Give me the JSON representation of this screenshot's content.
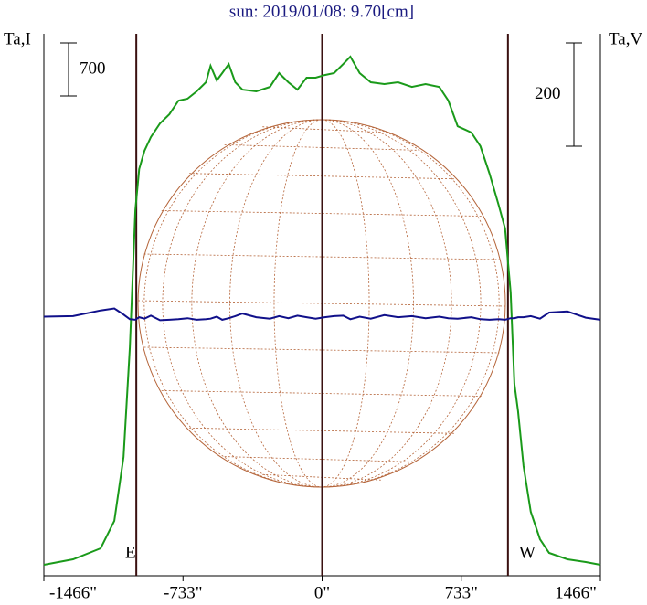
{
  "chart_data": {
    "type": "line",
    "title": "sun: 2019/01/08: 9.70[cm]",
    "y_label": "Ta,I",
    "y2_label": "Ta,V",
    "y_scale_bar": 700,
    "y2_scale_bar": 200,
    "annotations": [
      "E",
      "W"
    ],
    "vlines": [
      -979,
      0,
      979
    ],
    "x": [
      -1466,
      -1312,
      -1167,
      -1095,
      -1046,
      -1013,
      -984,
      -964,
      -936,
      -902,
      -854,
      -805,
      -757,
      -709,
      -661,
      -612,
      -588,
      -555,
      -526,
      -492,
      -458,
      -420,
      -347,
      -275,
      -227,
      -178,
      -130,
      -82,
      -34,
      14,
      63,
      111,
      149,
      198,
      256,
      328,
      400,
      473,
      545,
      617,
      665,
      714,
      786,
      834,
      882,
      931,
      964,
      993,
      1013,
      1032,
      1061,
      1099,
      1148,
      1196,
      1292,
      1389,
      1466
    ],
    "series": [
      {
        "name": "Ta,I",
        "color": "#1a9a1a",
        "values": [
          145,
          217,
          362,
          724,
          1569,
          3018,
          4828,
          5371,
          5613,
          5794,
          5975,
          6095,
          6276,
          6301,
          6397,
          6518,
          6735,
          6542,
          6639,
          6759,
          6518,
          6421,
          6397,
          6457,
          6639,
          6518,
          6421,
          6578,
          6578,
          6614,
          6639,
          6759,
          6856,
          6639,
          6518,
          6494,
          6518,
          6457,
          6494,
          6457,
          6276,
          5938,
          5854,
          5673,
          5311,
          4888,
          4587,
          3742,
          2535,
          2173,
          1448,
          845,
          483,
          302,
          217,
          181,
          145
        ]
      },
      {
        "name": "Ta,V",
        "color": "#10108a",
        "axis": "y2",
        "values": [
          2,
          3,
          14,
          18,
          6,
          -3,
          -4,
          1,
          -2,
          4,
          -5,
          -4,
          -3,
          -1,
          -4,
          -3,
          -2,
          2,
          -4,
          -1,
          3,
          8,
          1,
          -2,
          3,
          -1,
          4,
          1,
          -2,
          1,
          3,
          4,
          -3,
          2,
          -2,
          5,
          1,
          3,
          -1,
          2,
          -1,
          -2,
          1,
          -3,
          -4,
          -3,
          -4,
          -1,
          -1,
          1,
          1,
          3,
          -2,
          10,
          12,
          0,
          -4
        ]
      }
    ],
    "xlim": [
      -1466,
      1466
    ],
    "xticks": [
      {
        "value": -1466,
        "label": "-1466\""
      },
      {
        "value": -733,
        "label": "-733\""
      },
      {
        "value": 0,
        "label": "0\""
      },
      {
        "value": 733,
        "label": "733\""
      },
      {
        "value": 1466,
        "label": "1466\""
      }
    ],
    "ylim": [
      0,
      7158
    ],
    "y2lim": [
      -500,
      550
    ]
  }
}
